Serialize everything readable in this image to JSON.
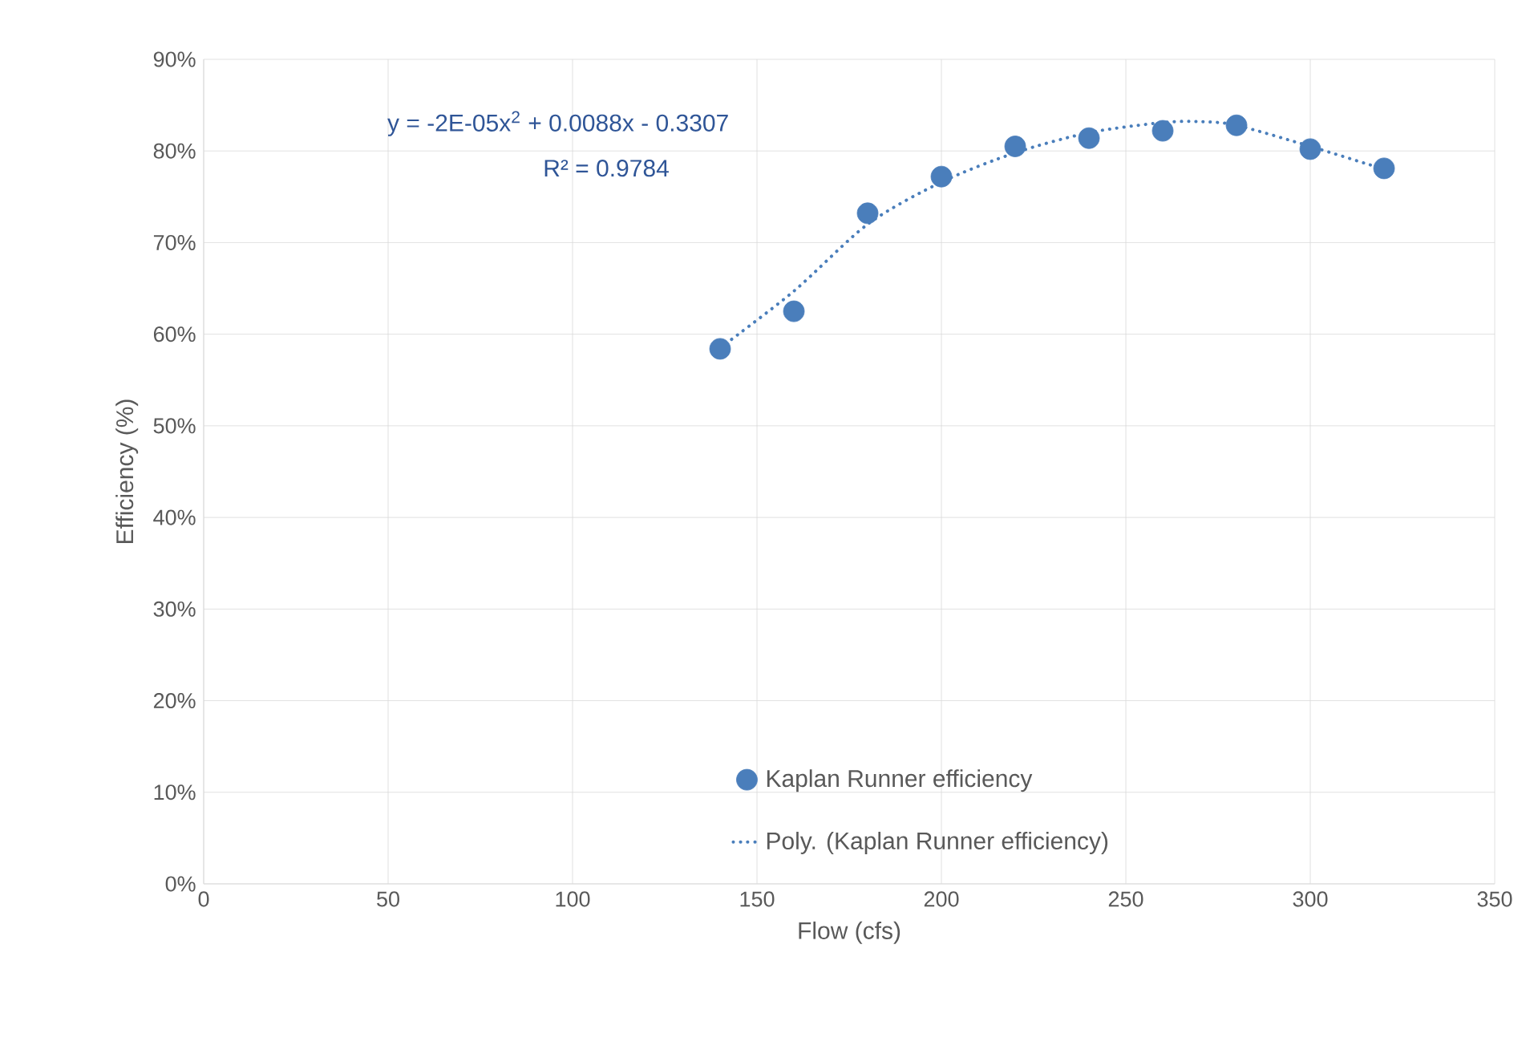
{
  "chart_data": {
    "type": "scatter",
    "xlabel": "Flow (cfs)",
    "ylabel": "Efficiency (%)",
    "x": [
      140,
      160,
      180,
      200,
      220,
      240,
      260,
      280,
      300,
      320
    ],
    "series": [
      {
        "name": "Kaplan Runner efficiency",
        "color": "#4a7ebb",
        "marker": "circle",
        "values": [
          58.4,
          62.5,
          73.2,
          77.2,
          80.5,
          81.4,
          82.2,
          82.8,
          80.2,
          78.1
        ]
      },
      {
        "name": "Poly. (Kaplan Runner efficiency)",
        "type": "line",
        "color": "#4a7ebb",
        "marker": "none",
        "line_style": "dotted",
        "x": [
          140,
          160,
          180,
          200,
          220,
          240,
          260,
          270,
          280,
          300,
          320
        ],
        "values": [
          58.5,
          64.7,
          72.0,
          76.6,
          79.8,
          82.0,
          83.1,
          83.2,
          82.8,
          80.5,
          78.0
        ]
      }
    ],
    "xlim": [
      0,
      350
    ],
    "xticks": [
      0,
      50,
      100,
      150,
      200,
      250,
      300,
      350
    ],
    "ylim": [
      0,
      90
    ],
    "yticks": [
      {
        "value": 0,
        "label": "0%"
      },
      {
        "value": 10,
        "label": "10%"
      },
      {
        "value": 20,
        "label": "20%"
      },
      {
        "value": 30,
        "label": "30%"
      },
      {
        "value": 40,
        "label": "40%"
      },
      {
        "value": 50,
        "label": "50%"
      },
      {
        "value": 60,
        "label": "60%"
      },
      {
        "value": 70,
        "label": "70%"
      },
      {
        "value": 80,
        "label": "80%"
      },
      {
        "value": 90,
        "label": "90%"
      }
    ],
    "grid": true,
    "legend": "bottom",
    "annotations": [
      "y = -2E-05x$^{2}$ + 0.0088x - 0.3307",
      "R² = 0.9784"
    ]
  }
}
